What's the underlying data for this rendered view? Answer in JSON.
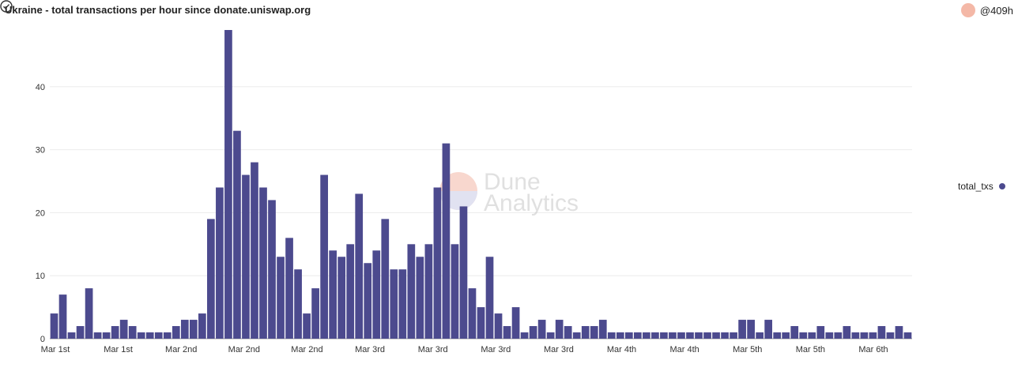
{
  "header": {
    "title": "Ukraine - total transactions per hour since donate.uniswap.org",
    "author": "@409h"
  },
  "watermark": {
    "line1": "Dune",
    "line2": "Analytics"
  },
  "colors": {
    "bar": "#4c4a8e",
    "grid": "#ebebeb",
    "avatar": "#f4b8a7"
  },
  "chart_data": {
    "type": "bar",
    "ylim": [
      0,
      49
    ],
    "yticks": [
      0,
      10,
      20,
      30,
      40
    ],
    "xtick_labels": [
      "Mar 1st",
      "Mar 1st",
      "Mar 2nd",
      "Mar 2nd",
      "Mar 2nd",
      "Mar 3rd",
      "Mar 3rd",
      "Mar 3rd",
      "Mar 3rd",
      "Mar 4th",
      "Mar 4th",
      "Mar 5th",
      "Mar 5th",
      "Mar 6th"
    ],
    "series": [
      {
        "name": "total_txs",
        "values": [
          4,
          7,
          1,
          2,
          8,
          1,
          1,
          2,
          3,
          2,
          1,
          1,
          1,
          1,
          2,
          3,
          3,
          4,
          19,
          24,
          49,
          33,
          26,
          28,
          24,
          22,
          13,
          16,
          11,
          4,
          8,
          26,
          14,
          13,
          15,
          23,
          12,
          14,
          19,
          11,
          11,
          15,
          13,
          15,
          24,
          31,
          15,
          21,
          8,
          5,
          13,
          4,
          2,
          5,
          1,
          2,
          3,
          1,
          3,
          2,
          1,
          2,
          2,
          3,
          1,
          1,
          1,
          1,
          1,
          1,
          1,
          1,
          1,
          1,
          1,
          1,
          1,
          1,
          1,
          3,
          3,
          1,
          3,
          1,
          1,
          2,
          1,
          1,
          2,
          1,
          1,
          2,
          1,
          1,
          1,
          2,
          1,
          2,
          1
        ]
      }
    ]
  },
  "controls": {
    "check_icon": "check-circle-icon"
  }
}
